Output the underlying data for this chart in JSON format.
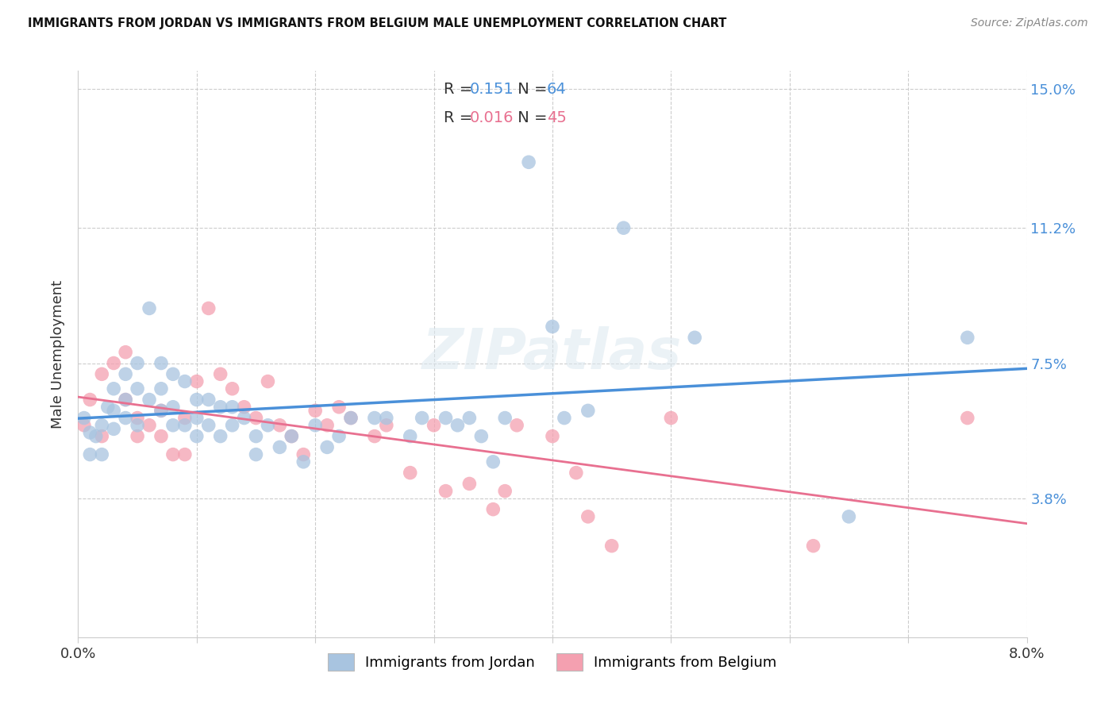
{
  "title": "IMMIGRANTS FROM JORDAN VS IMMIGRANTS FROM BELGIUM MALE UNEMPLOYMENT CORRELATION CHART",
  "source": "Source: ZipAtlas.com",
  "ylabel": "Male Unemployment",
  "legend_label1": "Immigrants from Jordan",
  "legend_label2": "Immigrants from Belgium",
  "R1": "0.151",
  "N1": "64",
  "R2": "0.016",
  "N2": "45",
  "xlim": [
    0.0,
    0.08
  ],
  "ylim": [
    0.0,
    0.155
  ],
  "ytick_vals": [
    0.038,
    0.075,
    0.112,
    0.15
  ],
  "ytick_labels": [
    "3.8%",
    "7.5%",
    "11.2%",
    "15.0%"
  ],
  "xtick_vals": [
    0.0,
    0.01,
    0.02,
    0.03,
    0.04,
    0.05,
    0.06,
    0.07,
    0.08
  ],
  "xtick_labels": [
    "0.0%",
    "",
    "",
    "",
    "",
    "",
    "",
    "",
    "8.0%"
  ],
  "color_jordan": "#a8c4e0",
  "color_belgium": "#f4a0b0",
  "line_color_jordan": "#4a90d9",
  "line_color_belgium": "#e87090",
  "bg_color": "#ffffff",
  "grid_color": "#cccccc",
  "jordan_x": [
    0.0005,
    0.001,
    0.001,
    0.0015,
    0.002,
    0.002,
    0.0025,
    0.003,
    0.003,
    0.003,
    0.004,
    0.004,
    0.004,
    0.005,
    0.005,
    0.005,
    0.006,
    0.006,
    0.007,
    0.007,
    0.007,
    0.008,
    0.008,
    0.008,
    0.009,
    0.009,
    0.01,
    0.01,
    0.01,
    0.011,
    0.011,
    0.012,
    0.012,
    0.013,
    0.013,
    0.014,
    0.015,
    0.015,
    0.016,
    0.017,
    0.018,
    0.019,
    0.02,
    0.021,
    0.022,
    0.023,
    0.025,
    0.026,
    0.028,
    0.029,
    0.031,
    0.032,
    0.033,
    0.034,
    0.035,
    0.036,
    0.038,
    0.04,
    0.041,
    0.043,
    0.046,
    0.052,
    0.065,
    0.075
  ],
  "jordan_y": [
    0.06,
    0.056,
    0.05,
    0.055,
    0.058,
    0.05,
    0.063,
    0.068,
    0.062,
    0.057,
    0.072,
    0.065,
    0.06,
    0.075,
    0.068,
    0.058,
    0.09,
    0.065,
    0.075,
    0.068,
    0.062,
    0.072,
    0.063,
    0.058,
    0.07,
    0.058,
    0.065,
    0.06,
    0.055,
    0.065,
    0.058,
    0.063,
    0.055,
    0.063,
    0.058,
    0.06,
    0.055,
    0.05,
    0.058,
    0.052,
    0.055,
    0.048,
    0.058,
    0.052,
    0.055,
    0.06,
    0.06,
    0.06,
    0.055,
    0.06,
    0.06,
    0.058,
    0.06,
    0.055,
    0.048,
    0.06,
    0.13,
    0.085,
    0.06,
    0.062,
    0.112,
    0.082,
    0.033,
    0.082
  ],
  "belgium_x": [
    0.0005,
    0.001,
    0.002,
    0.002,
    0.003,
    0.004,
    0.004,
    0.005,
    0.005,
    0.006,
    0.007,
    0.007,
    0.008,
    0.009,
    0.009,
    0.01,
    0.011,
    0.012,
    0.013,
    0.014,
    0.015,
    0.016,
    0.017,
    0.018,
    0.019,
    0.02,
    0.021,
    0.022,
    0.023,
    0.025,
    0.026,
    0.028,
    0.03,
    0.031,
    0.033,
    0.035,
    0.036,
    0.037,
    0.04,
    0.042,
    0.043,
    0.045,
    0.05,
    0.062,
    0.075
  ],
  "belgium_y": [
    0.058,
    0.065,
    0.072,
    0.055,
    0.075,
    0.078,
    0.065,
    0.06,
    0.055,
    0.058,
    0.062,
    0.055,
    0.05,
    0.06,
    0.05,
    0.07,
    0.09,
    0.072,
    0.068,
    0.063,
    0.06,
    0.07,
    0.058,
    0.055,
    0.05,
    0.062,
    0.058,
    0.063,
    0.06,
    0.055,
    0.058,
    0.045,
    0.058,
    0.04,
    0.042,
    0.035,
    0.04,
    0.058,
    0.055,
    0.045,
    0.033,
    0.025,
    0.06,
    0.025,
    0.06
  ]
}
